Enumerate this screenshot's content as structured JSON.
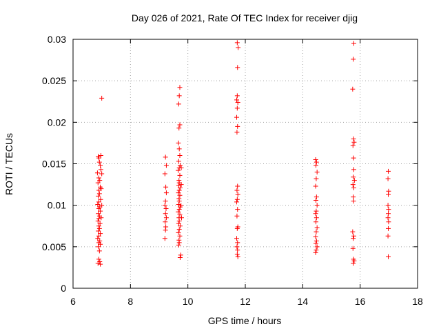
{
  "chart_data": {
    "type": "scatter",
    "title": "Day 026 of 2021, Rate Of TEC Index for receiver djig",
    "xlabel": "GPS time / hours",
    "ylabel": "ROTI / TECUs",
    "xlim": [
      6,
      18
    ],
    "ylim": [
      0,
      0.03
    ],
    "x_ticks": [
      6,
      8,
      10,
      12,
      14,
      16,
      18
    ],
    "x_tick_labels": [
      "6",
      "8",
      "10",
      "12",
      "14",
      "16",
      "18"
    ],
    "y_ticks": [
      0,
      0.005,
      0.01,
      0.015,
      0.02,
      0.025,
      0.03
    ],
    "y_tick_labels": [
      "0",
      "0.005",
      "0.01",
      "0.015",
      "0.02",
      "0.025",
      "0.03"
    ],
    "grid": true,
    "marker": "+",
    "series": [
      {
        "color": "#ff0000",
        "points": [
          [
            6.88,
            0.0159
          ],
          [
            6.9,
            0.0157
          ],
          [
            6.92,
            0.0152
          ],
          [
            6.95,
            0.0148
          ],
          [
            6.97,
            0.0143
          ],
          [
            6.85,
            0.0139
          ],
          [
            6.9,
            0.0133
          ],
          [
            6.93,
            0.013
          ],
          [
            6.87,
            0.0127
          ],
          [
            6.95,
            0.0122
          ],
          [
            6.9,
            0.0118
          ],
          [
            6.92,
            0.0114
          ],
          [
            6.88,
            0.0111
          ],
          [
            6.96,
            0.0107
          ],
          [
            6.9,
            0.0104
          ],
          [
            6.86,
            0.0101
          ],
          [
            6.93,
            0.0098
          ],
          [
            6.9,
            0.0096
          ],
          [
            6.95,
            0.0093
          ],
          [
            6.88,
            0.009
          ],
          [
            6.92,
            0.0087
          ],
          [
            6.9,
            0.0084
          ],
          [
            6.87,
            0.0081
          ],
          [
            6.94,
            0.0078
          ],
          [
            6.9,
            0.0075
          ],
          [
            6.92,
            0.0072
          ],
          [
            6.88,
            0.0069
          ],
          [
            6.95,
            0.0066
          ],
          [
            6.9,
            0.0063
          ],
          [
            6.86,
            0.006
          ],
          [
            6.93,
            0.0057
          ],
          [
            6.9,
            0.0055
          ],
          [
            6.95,
            0.0053
          ],
          [
            6.88,
            0.005
          ],
          [
            6.92,
            0.0045
          ],
          [
            6.9,
            0.0035
          ],
          [
            6.93,
            0.0032
          ],
          [
            6.87,
            0.003
          ],
          [
            6.95,
            0.0029
          ],
          [
            7.0,
            0.0229
          ],
          [
            6.97,
            0.016
          ],
          [
            7.0,
            0.0138
          ],
          [
            6.98,
            0.012
          ],
          [
            7.0,
            0.01
          ],
          [
            6.98,
            0.0085
          ],
          [
            9.22,
            0.0158
          ],
          [
            9.25,
            0.0148
          ],
          [
            9.2,
            0.0138
          ],
          [
            9.23,
            0.0122
          ],
          [
            9.25,
            0.0115
          ],
          [
            9.22,
            0.0105
          ],
          [
            9.2,
            0.01
          ],
          [
            9.24,
            0.0096
          ],
          [
            9.22,
            0.009
          ],
          [
            9.25,
            0.0085
          ],
          [
            9.21,
            0.008
          ],
          [
            9.23,
            0.0074
          ],
          [
            9.22,
            0.007
          ],
          [
            9.2,
            0.006
          ],
          [
            9.72,
            0.0242
          ],
          [
            9.7,
            0.0232
          ],
          [
            9.68,
            0.0222
          ],
          [
            9.72,
            0.0197
          ],
          [
            9.69,
            0.0193
          ],
          [
            9.67,
            0.0175
          ],
          [
            9.7,
            0.0168
          ],
          [
            9.72,
            0.016
          ],
          [
            9.68,
            0.0153
          ],
          [
            9.73,
            0.0148
          ],
          [
            9.7,
            0.0145
          ],
          [
            9.66,
            0.0142
          ],
          [
            9.72,
            0.0136
          ],
          [
            9.69,
            0.013
          ],
          [
            9.7,
            0.0127
          ],
          [
            9.68,
            0.0124
          ],
          [
            9.73,
            0.0121
          ],
          [
            9.7,
            0.0118
          ],
          [
            9.67,
            0.0115
          ],
          [
            9.72,
            0.0112
          ],
          [
            9.69,
            0.0108
          ],
          [
            9.7,
            0.0105
          ],
          [
            9.68,
            0.0101
          ],
          [
            9.73,
            0.0098
          ],
          [
            9.7,
            0.0095
          ],
          [
            9.66,
            0.0092
          ],
          [
            9.72,
            0.0089
          ],
          [
            9.69,
            0.0085
          ],
          [
            9.7,
            0.0081
          ],
          [
            9.68,
            0.0078
          ],
          [
            9.73,
            0.0075
          ],
          [
            9.7,
            0.0071
          ],
          [
            9.67,
            0.0067
          ],
          [
            9.72,
            0.0063
          ],
          [
            9.69,
            0.0058
          ],
          [
            9.7,
            0.0055
          ],
          [
            9.68,
            0.0052
          ],
          [
            9.75,
            0.004
          ],
          [
            9.73,
            0.0037
          ],
          [
            9.77,
            0.0125
          ],
          [
            9.76,
            0.01
          ],
          [
            9.78,
            0.0085
          ],
          [
            9.77,
            0.0145
          ],
          [
            11.72,
            0.0296
          ],
          [
            11.75,
            0.029
          ],
          [
            11.73,
            0.0266
          ],
          [
            11.72,
            0.0232
          ],
          [
            11.7,
            0.0227
          ],
          [
            11.74,
            0.0224
          ],
          [
            11.72,
            0.0217
          ],
          [
            11.7,
            0.0206
          ],
          [
            11.73,
            0.0195
          ],
          [
            11.71,
            0.0188
          ],
          [
            11.73,
            0.0123
          ],
          [
            11.71,
            0.0118
          ],
          [
            11.74,
            0.0113
          ],
          [
            11.72,
            0.0107
          ],
          [
            11.7,
            0.0104
          ],
          [
            11.73,
            0.0095
          ],
          [
            11.71,
            0.0087
          ],
          [
            11.74,
            0.0074
          ],
          [
            11.72,
            0.0072
          ],
          [
            11.7,
            0.006
          ],
          [
            11.73,
            0.0055
          ],
          [
            11.71,
            0.005
          ],
          [
            11.73,
            0.0046
          ],
          [
            11.72,
            0.0041
          ],
          [
            11.74,
            0.0038
          ],
          [
            14.45,
            0.0155
          ],
          [
            14.48,
            0.0152
          ],
          [
            14.46,
            0.0148
          ],
          [
            14.5,
            0.014
          ],
          [
            14.47,
            0.0132
          ],
          [
            14.45,
            0.0123
          ],
          [
            14.48,
            0.011
          ],
          [
            14.46,
            0.0106
          ],
          [
            14.5,
            0.01
          ],
          [
            14.47,
            0.0093
          ],
          [
            14.45,
            0.009
          ],
          [
            14.48,
            0.0085
          ],
          [
            14.46,
            0.008
          ],
          [
            14.5,
            0.0073
          ],
          [
            14.47,
            0.0068
          ],
          [
            14.45,
            0.0062
          ],
          [
            14.48,
            0.0057
          ],
          [
            14.46,
            0.0054
          ],
          [
            14.5,
            0.005
          ],
          [
            14.47,
            0.0046
          ],
          [
            14.45,
            0.0043
          ],
          [
            15.78,
            0.0295
          ],
          [
            15.76,
            0.0276
          ],
          [
            15.74,
            0.024
          ],
          [
            15.77,
            0.018
          ],
          [
            15.79,
            0.0176
          ],
          [
            15.75,
            0.0172
          ],
          [
            15.77,
            0.0157
          ],
          [
            15.78,
            0.0143
          ],
          [
            15.76,
            0.0134
          ],
          [
            15.8,
            0.013
          ],
          [
            15.75,
            0.0125
          ],
          [
            15.78,
            0.0121
          ],
          [
            15.76,
            0.011
          ],
          [
            15.77,
            0.0105
          ],
          [
            15.74,
            0.0068
          ],
          [
            15.78,
            0.0063
          ],
          [
            15.76,
            0.006
          ],
          [
            15.75,
            0.0048
          ],
          [
            15.77,
            0.0035
          ],
          [
            15.79,
            0.0033
          ],
          [
            15.76,
            0.003
          ],
          [
            16.98,
            0.0141
          ],
          [
            16.97,
            0.0132
          ],
          [
            16.99,
            0.0117
          ],
          [
            16.98,
            0.0113
          ],
          [
            16.97,
            0.01
          ],
          [
            16.99,
            0.0095
          ],
          [
            16.98,
            0.009
          ],
          [
            16.97,
            0.0085
          ],
          [
            16.99,
            0.008
          ],
          [
            16.98,
            0.0072
          ],
          [
            16.97,
            0.0063
          ],
          [
            16.98,
            0.0038
          ]
        ]
      }
    ]
  }
}
